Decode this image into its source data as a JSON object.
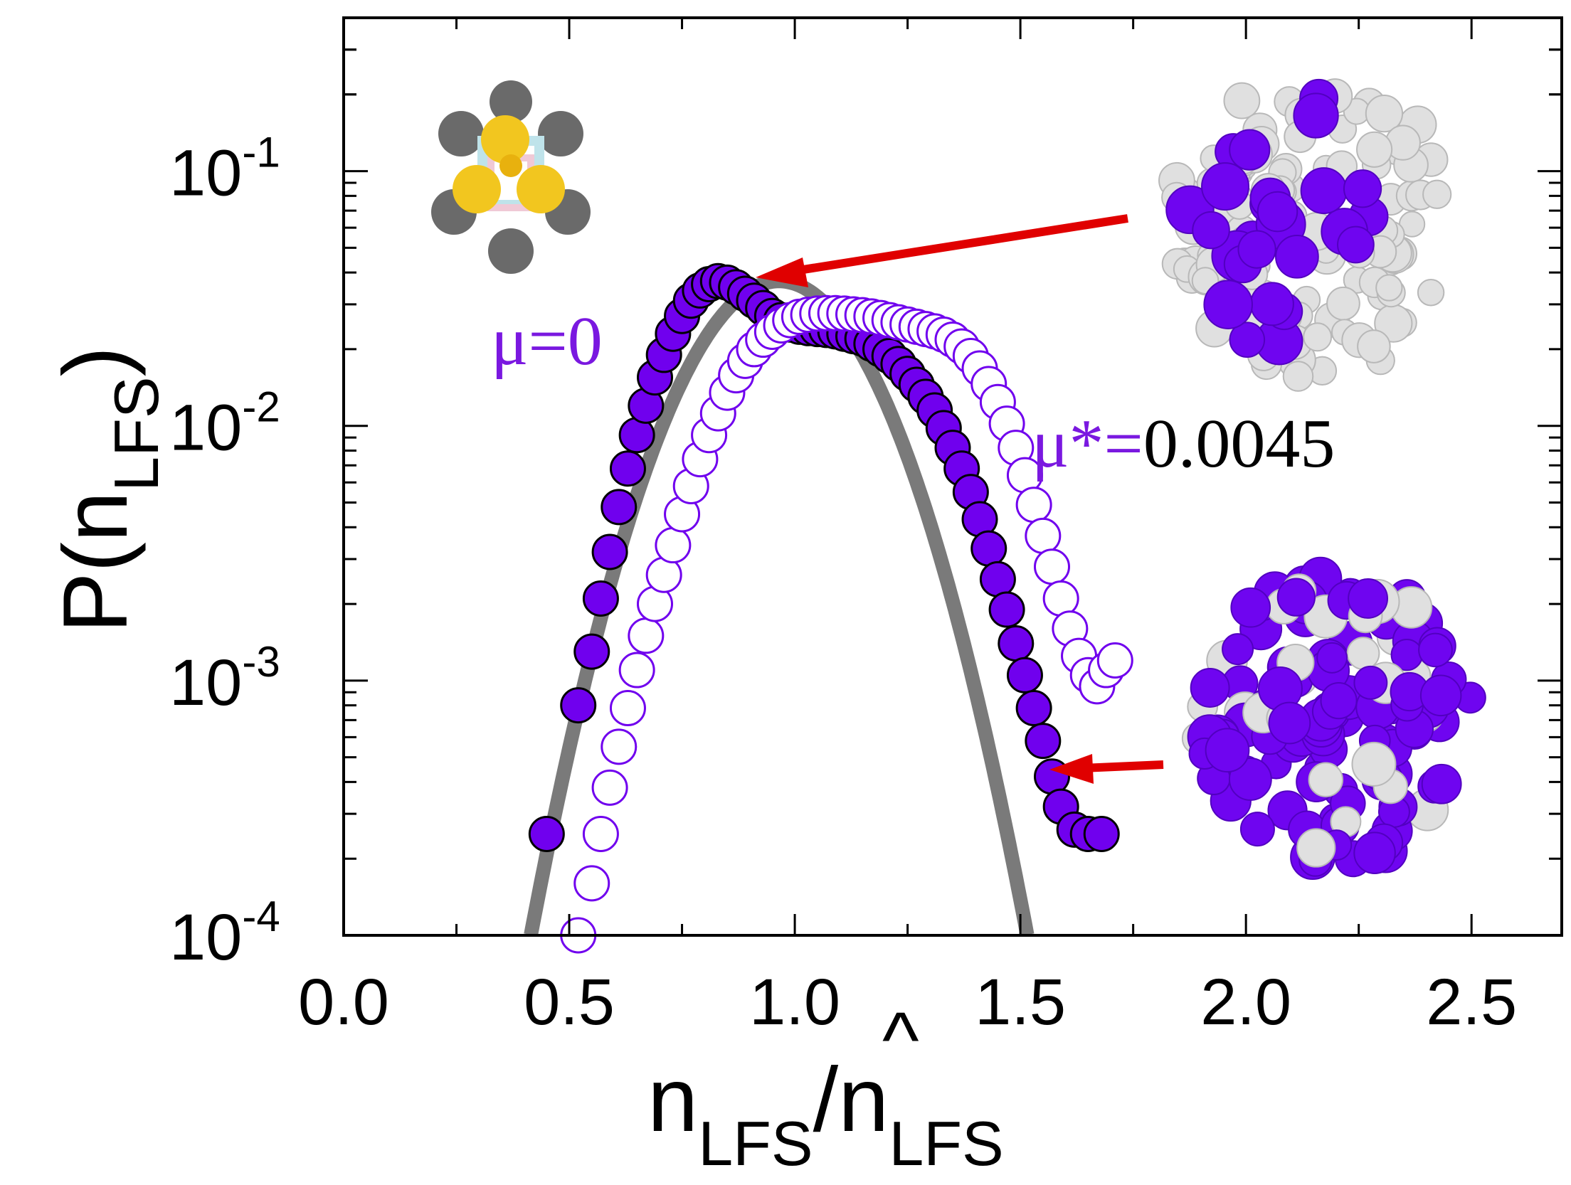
{
  "chart_data": {
    "type": "scatter",
    "xlabel": {
      "main": "n",
      "sub": "LFS",
      "slash": "/",
      "hat_main": "n",
      "hat_mark": "^",
      "hat_sub": "LFS"
    },
    "ylabel": {
      "main": "P(n",
      "sub": "LFS",
      "close": ")"
    },
    "xlim": [
      0.0,
      2.7
    ],
    "ylim": [
      0.0001,
      0.4
    ],
    "yscale": "log",
    "grid": false,
    "x_ticks": [
      "0.0",
      "0.5",
      "1.0",
      "1.5",
      "2.0",
      "2.5"
    ],
    "x_tick_values": [
      0.0,
      0.5,
      1.0,
      1.5,
      2.0,
      2.5
    ],
    "y_ticks": [
      {
        "value": 0.1,
        "base": "10",
        "exp": "-1"
      },
      {
        "value": 0.01,
        "base": "10",
        "exp": "-2"
      },
      {
        "value": 0.001,
        "base": "10",
        "exp": "-3"
      },
      {
        "value": 0.0001,
        "base": "10",
        "exp": "-4"
      }
    ],
    "colors": {
      "filled": "#7000ee",
      "open_edge": "#7000ee",
      "gaussian": "#7a7a7a",
      "arrow": "#e00000",
      "text_purple": "#7a18e0"
    },
    "annotations": {
      "mu0": "μ=0",
      "mustar_prefix": "μ*=",
      "mustar_value": "0.0045"
    },
    "series": [
      {
        "marker": "filled-circle",
        "x": [
          0.45,
          0.52,
          0.55,
          0.57,
          0.59,
          0.61,
          0.63,
          0.65,
          0.67,
          0.69,
          0.71,
          0.73,
          0.75,
          0.77,
          0.79,
          0.81,
          0.83,
          0.85,
          0.87,
          0.89,
          0.91,
          0.93,
          0.95,
          0.97,
          0.99,
          1.01,
          1.03,
          1.05,
          1.07,
          1.09,
          1.11,
          1.13,
          1.15,
          1.17,
          1.19,
          1.21,
          1.23,
          1.25,
          1.27,
          1.29,
          1.31,
          1.33,
          1.35,
          1.37,
          1.39,
          1.41,
          1.43,
          1.45,
          1.47,
          1.49,
          1.51,
          1.53,
          1.55,
          1.57,
          1.59,
          1.62,
          1.65,
          1.68
        ],
        "y": [
          0.00025,
          0.0008,
          0.0013,
          0.0021,
          0.0032,
          0.0048,
          0.0068,
          0.0092,
          0.012,
          0.0155,
          0.019,
          0.023,
          0.027,
          0.031,
          0.034,
          0.036,
          0.037,
          0.0365,
          0.035,
          0.033,
          0.031,
          0.029,
          0.027,
          0.026,
          0.025,
          0.0245,
          0.0242,
          0.024,
          0.0238,
          0.0235,
          0.023,
          0.0225,
          0.022,
          0.021,
          0.02,
          0.0188,
          0.0175,
          0.016,
          0.0145,
          0.013,
          0.0115,
          0.0098,
          0.0082,
          0.0068,
          0.0055,
          0.0043,
          0.0033,
          0.0025,
          0.0019,
          0.0014,
          0.00105,
          0.00078,
          0.00058,
          0.00042,
          0.00032,
          0.00026,
          0.00025,
          0.00025
        ]
      },
      {
        "marker": "open-circle",
        "x": [
          0.52,
          0.55,
          0.57,
          0.59,
          0.61,
          0.63,
          0.65,
          0.67,
          0.69,
          0.71,
          0.73,
          0.75,
          0.77,
          0.79,
          0.81,
          0.83,
          0.85,
          0.87,
          0.89,
          0.91,
          0.93,
          0.95,
          0.97,
          0.99,
          1.01,
          1.03,
          1.05,
          1.07,
          1.09,
          1.11,
          1.13,
          1.15,
          1.17,
          1.19,
          1.21,
          1.23,
          1.25,
          1.27,
          1.29,
          1.31,
          1.33,
          1.35,
          1.37,
          1.39,
          1.41,
          1.43,
          1.45,
          1.47,
          1.49,
          1.51,
          1.53,
          1.55,
          1.57,
          1.59,
          1.61,
          1.63,
          1.65,
          1.67,
          1.69,
          1.71
        ],
        "y": [
          0.0001,
          0.00016,
          0.00025,
          0.00038,
          0.00055,
          0.00078,
          0.0011,
          0.0015,
          0.002,
          0.0026,
          0.0034,
          0.0045,
          0.0058,
          0.0074,
          0.0092,
          0.0112,
          0.0135,
          0.0158,
          0.018,
          0.02,
          0.0218,
          0.0234,
          0.0248,
          0.026,
          0.0268,
          0.0273,
          0.0276,
          0.0277,
          0.0277,
          0.0276,
          0.0274,
          0.0272,
          0.0269,
          0.0265,
          0.026,
          0.0255,
          0.025,
          0.0245,
          0.024,
          0.0235,
          0.0228,
          0.0218,
          0.0205,
          0.0188,
          0.0168,
          0.0146,
          0.0124,
          0.0102,
          0.0082,
          0.0064,
          0.0049,
          0.0037,
          0.0028,
          0.0021,
          0.0016,
          0.00125,
          0.00105,
          0.00095,
          0.0011,
          0.0012
        ]
      },
      {
        "marker": "line",
        "mean": 0.965,
        "sigma": 0.16,
        "peak": 0.037,
        "x_range": [
          0.36,
          1.61
        ]
      }
    ]
  }
}
